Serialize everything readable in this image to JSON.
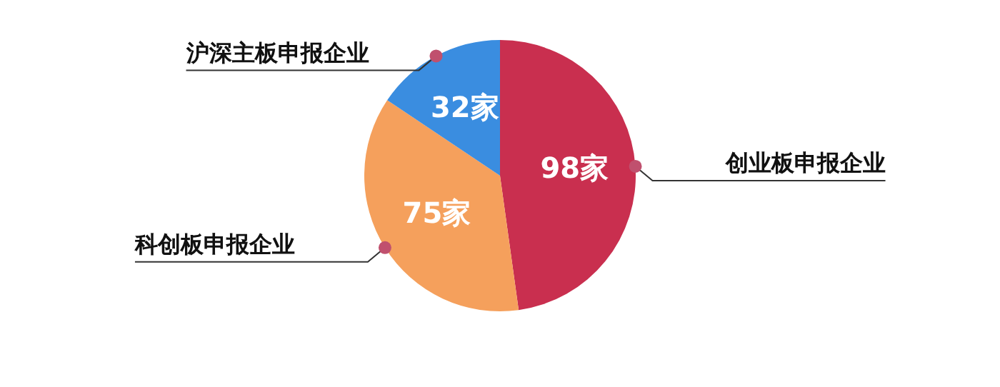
{
  "chart_data": {
    "type": "pie",
    "categories": [
      "创业板申报企业",
      "科创板申报企业",
      "沪深主板申报企业"
    ],
    "values": [
      98,
      75,
      32
    ],
    "value_labels": [
      "98家",
      "75家",
      "32家"
    ],
    "colors": [
      "#c92f4f",
      "#f5a05c",
      "#3a8de0"
    ],
    "legend": false
  }
}
